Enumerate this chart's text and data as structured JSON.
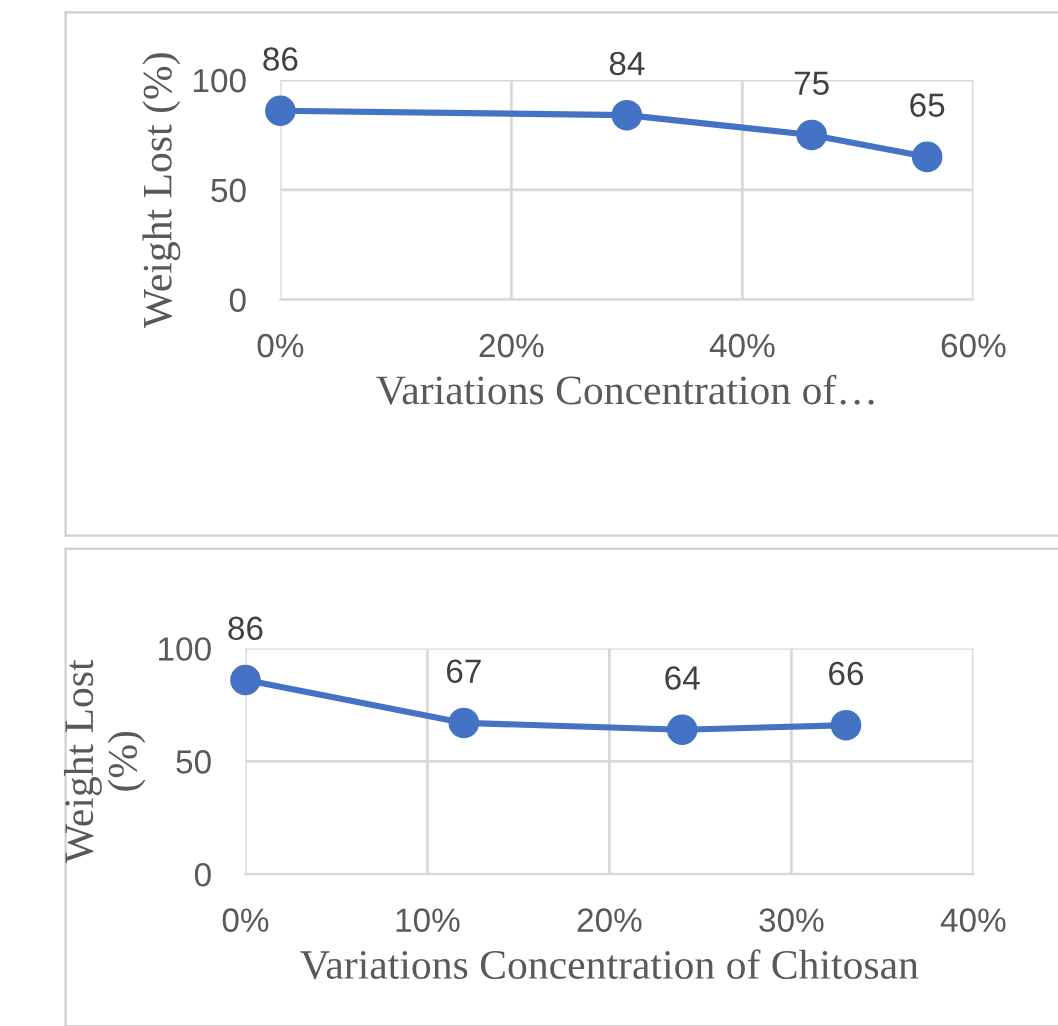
{
  "chart_data": [
    {
      "type": "line",
      "xlabel": "Variations Concentration of…",
      "ylabel": "Weight Lost (%)",
      "x": [
        0,
        30,
        46,
        56
      ],
      "values": [
        86,
        84,
        75,
        65
      ],
      "color": "#4472c4",
      "marker": "circle",
      "data_labels": true,
      "xlim": [
        0,
        60
      ],
      "xticks": [
        {
          "value": 0,
          "label": "0%"
        },
        {
          "value": 20,
          "label": "20%"
        },
        {
          "value": 40,
          "label": "40%"
        },
        {
          "value": 60,
          "label": "60%"
        }
      ],
      "ylim": [
        0,
        100
      ],
      "yticks": [
        0,
        50,
        100
      ],
      "grid": true
    },
    {
      "type": "line",
      "xlabel": "Variations Concentration of Chitosan",
      "ylabel": "Weight Lost\n(%)",
      "x": [
        0,
        12,
        24,
        33
      ],
      "values": [
        86,
        67,
        64,
        66
      ],
      "color": "#4472c4",
      "marker": "circle",
      "data_labels": true,
      "xlim": [
        0,
        40
      ],
      "xticks": [
        {
          "value": 0,
          "label": "0%"
        },
        {
          "value": 10,
          "label": "10%"
        },
        {
          "value": 20,
          "label": "20%"
        },
        {
          "value": 30,
          "label": "30%"
        },
        {
          "value": 40,
          "label": "40%"
        }
      ],
      "ylim": [
        0,
        100
      ],
      "yticks": [
        0,
        50,
        100
      ],
      "grid": true
    }
  ]
}
